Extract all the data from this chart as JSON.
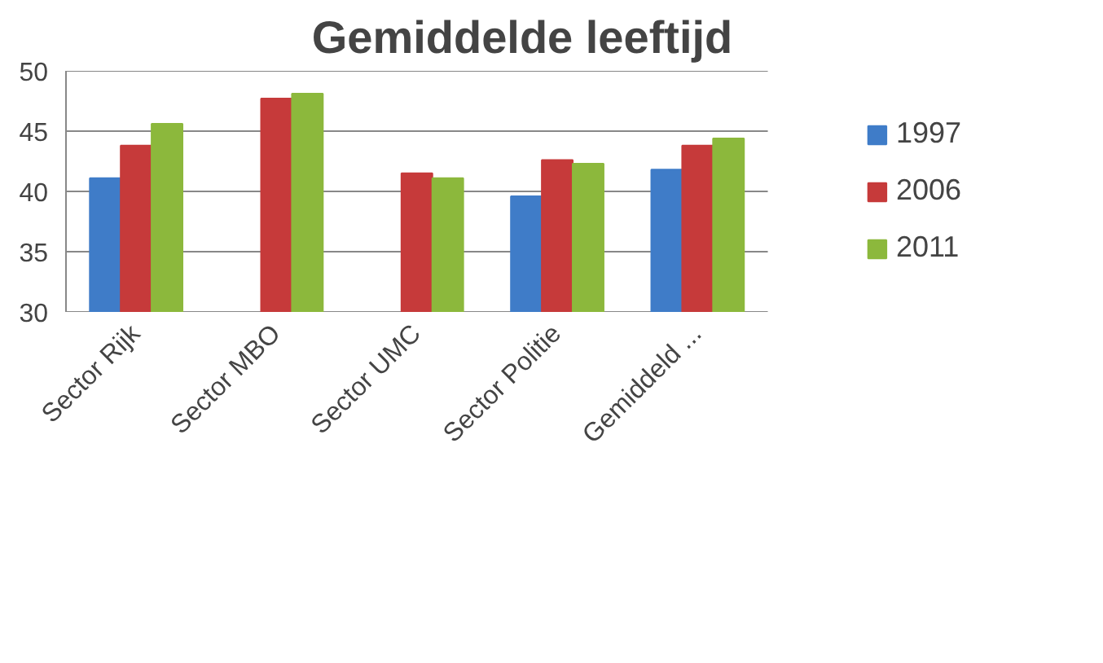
{
  "chart_data": {
    "type": "bar",
    "title": "Gemiddelde leeftijd",
    "categories": [
      "Sector Rijk",
      "Sector MBO",
      "Sector UMC",
      "Sector Politie",
      "Gemiddeld ..."
    ],
    "series": [
      {
        "name": "1997",
        "color": "#3f7cc8",
        "values": [
          41.1,
          null,
          null,
          39.6,
          41.8
        ]
      },
      {
        "name": "2006",
        "color": "#c63a3a",
        "values": [
          43.8,
          47.7,
          41.5,
          42.6,
          43.8
        ]
      },
      {
        "name": "2011",
        "color": "#8cb83c",
        "values": [
          45.6,
          48.1,
          41.1,
          42.3,
          44.4
        ]
      }
    ],
    "ylim": [
      30,
      50
    ],
    "yticks": [
      30,
      35,
      40,
      45,
      50
    ],
    "grid": "y",
    "legend": "right"
  }
}
